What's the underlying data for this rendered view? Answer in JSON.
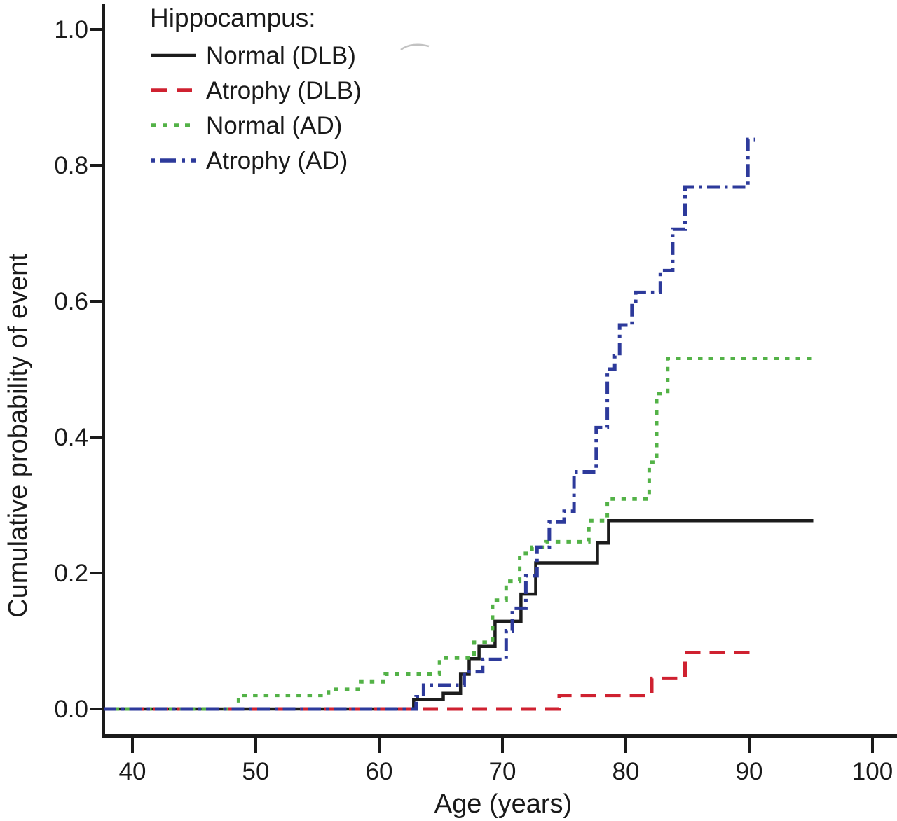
{
  "figure_description": "Kaplan-Meier style plot of cumulative probability of event versus age for DLB and AD groups, stratified by hippocampal status",
  "legend": {
    "title": "Hippocampus:",
    "items": [
      {
        "label": "Normal (DLB)",
        "series_id": "normal-dlb"
      },
      {
        "label": "Atrophy (DLB)",
        "series_id": "atrophy-dlb"
      },
      {
        "label": "Normal (AD)",
        "series_id": "normal-ad"
      },
      {
        "label": "Atrophy (AD)",
        "series_id": "atrophy-ad"
      }
    ]
  },
  "x_axis": {
    "label": "Age (years)",
    "tick_labels": [
      "40",
      "50",
      "60",
      "70",
      "80",
      "90",
      "100"
    ],
    "tick_values": [
      40,
      50,
      60,
      70,
      80,
      90,
      100
    ]
  },
  "y_axis": {
    "label": "Cumulative probability of event",
    "tick_labels": [
      "0.0",
      "0.2",
      "0.4",
      "0.6",
      "0.8",
      "1.0"
    ],
    "tick_values": [
      0,
      0.2,
      0.4,
      0.6,
      0.8,
      1.0
    ]
  },
  "colors": {
    "axis": "#1a1a1a",
    "black_line": "#1c1c1c",
    "red_line": "#cf2130",
    "green_line": "#53b247",
    "blue_line": "#2d3a9b",
    "artifact_gray": "#b3b3b3"
  },
  "chart_data": {
    "type": "step_line",
    "title": "",
    "xlabel": "Age (years)",
    "ylabel": "Cumulative probability of event",
    "xlim": [
      37.7,
      102
    ],
    "ylim": [
      0,
      1.04
    ],
    "x_ticks": [
      40,
      50,
      60,
      70,
      80,
      90,
      100
    ],
    "y_ticks": [
      0,
      0.2,
      0.4,
      0.6,
      0.8,
      1.0
    ],
    "grid": false,
    "legend_position": "top-left",
    "curve_start_age": 37.7,
    "series": [
      {
        "name": "Normal (DLB)",
        "id": "normal-dlb",
        "color": "#1c1c1c",
        "line_style": "solid",
        "start_value": 0,
        "end_age": 95.2,
        "steps": [
          [
            62.8,
            0.014
          ],
          [
            65.2,
            0.023
          ],
          [
            66.6,
            0.051
          ],
          [
            67.3,
            0.074
          ],
          [
            68.1,
            0.092
          ],
          [
            69.4,
            0.129
          ],
          [
            71.5,
            0.169
          ],
          [
            72.7,
            0.215
          ],
          [
            77.7,
            0.244
          ],
          [
            78.6,
            0.277
          ]
        ]
      },
      {
        "name": "Atrophy (DLB)",
        "id": "atrophy-dlb",
        "color": "#cf2130",
        "line_style": "dashed",
        "start_value": 0,
        "end_age": 90.4,
        "steps": [
          [
            74.6,
            0.02
          ],
          [
            82.1,
            0.045
          ],
          [
            84.8,
            0.083
          ]
        ]
      },
      {
        "name": "Normal (AD)",
        "id": "normal-ad",
        "color": "#53b247",
        "line_style": "dotted",
        "start_value": 0,
        "end_age": 95.1,
        "steps": [
          [
            48.6,
            0.02
          ],
          [
            55.9,
            0.029
          ],
          [
            58.5,
            0.04
          ],
          [
            60.5,
            0.051
          ],
          [
            64.9,
            0.075
          ],
          [
            67.7,
            0.098
          ],
          [
            69.2,
            0.16
          ],
          [
            70.3,
            0.188
          ],
          [
            71.4,
            0.229
          ],
          [
            72.4,
            0.238
          ],
          [
            73.5,
            0.246
          ],
          [
            77.0,
            0.277
          ],
          [
            78.5,
            0.309
          ],
          [
            81.9,
            0.363
          ],
          [
            82.5,
            0.464
          ],
          [
            83.4,
            0.516
          ]
        ]
      },
      {
        "name": "Atrophy (AD)",
        "id": "atrophy-ad",
        "color": "#2d3a9b",
        "line_style": "dashdot",
        "start_value": 0,
        "end_age": 90.5,
        "steps": [
          [
            63.0,
            0.018
          ],
          [
            63.6,
            0.035
          ],
          [
            66.9,
            0.055
          ],
          [
            68.4,
            0.073
          ],
          [
            70.3,
            0.115
          ],
          [
            70.8,
            0.148
          ],
          [
            71.9,
            0.196
          ],
          [
            72.8,
            0.238
          ],
          [
            73.8,
            0.275
          ],
          [
            75.0,
            0.291
          ],
          [
            75.8,
            0.349
          ],
          [
            77.6,
            0.414
          ],
          [
            78.5,
            0.5
          ],
          [
            79.1,
            0.52
          ],
          [
            79.5,
            0.565
          ],
          [
            80.5,
            0.6
          ],
          [
            80.8,
            0.613
          ],
          [
            82.8,
            0.645
          ],
          [
            83.8,
            0.706
          ],
          [
            84.8,
            0.768
          ],
          [
            89.9,
            0.838
          ]
        ]
      }
    ]
  }
}
